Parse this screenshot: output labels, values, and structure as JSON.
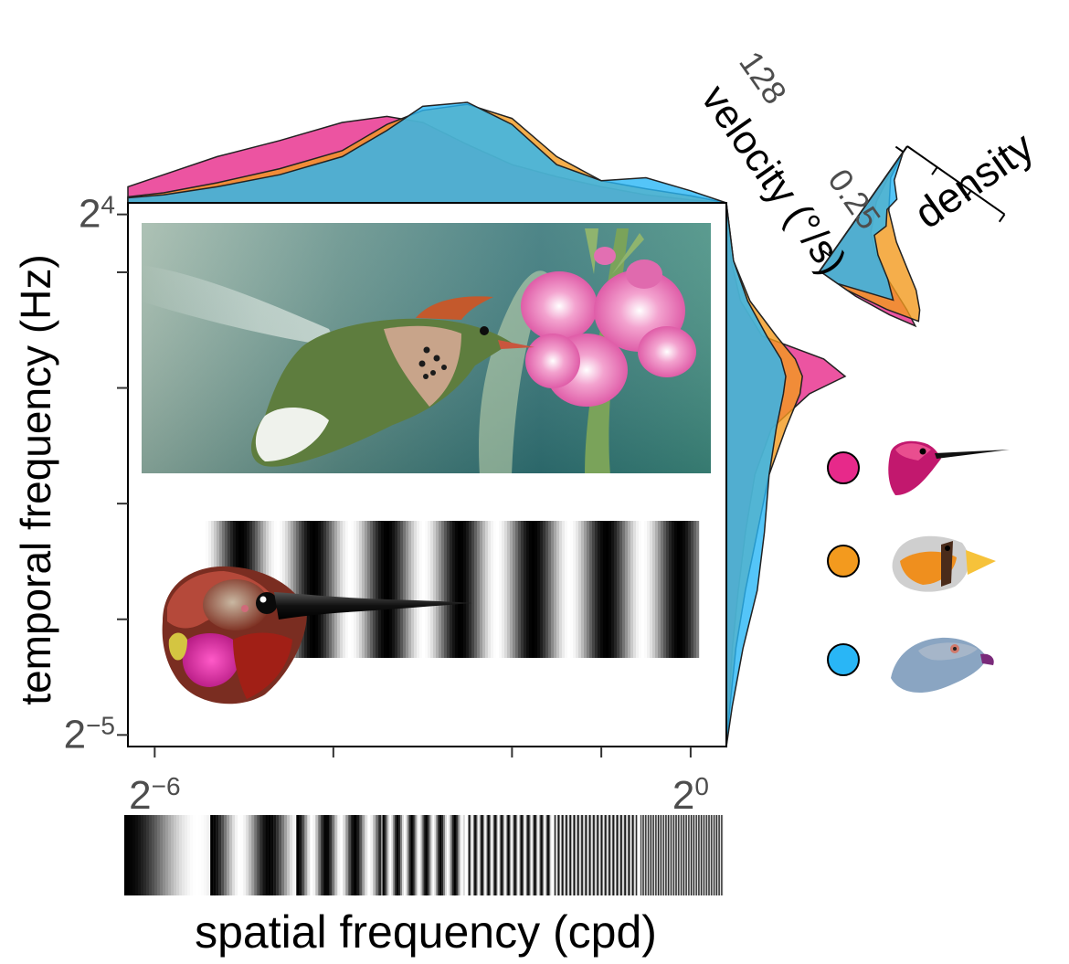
{
  "chart_data": {
    "type": "area",
    "description_tag": "joint spatial/temporal frequency panel with marginal density plots",
    "x_axis": {
      "label": "spatial frequency (cpd)",
      "scale": "log2",
      "range_log2": [
        -6.3,
        0.4
      ],
      "tick_labels": [
        {
          "base": "2",
          "exp": "−6",
          "log2": -6
        },
        {
          "base": "2",
          "exp": "0",
          "log2": 0
        }
      ],
      "minor_ticks_log2": [
        -4,
        -2,
        -1
      ]
    },
    "y_axis": {
      "label": "temporal frequency (Hz)",
      "scale": "log2",
      "range_log2": [
        -5.2,
        4.2
      ],
      "tick_labels": [
        {
          "base": "2",
          "exp": "4",
          "log2": 4
        },
        {
          "base": "2",
          "exp": "−5",
          "log2": -5
        }
      ],
      "minor_ticks_log2": [
        3,
        1,
        -1,
        -3
      ]
    },
    "inset": {
      "x_label": "density",
      "y_label": "velocity (°/s)",
      "y_ticks": [
        "128",
        "0.25"
      ]
    },
    "series": [
      {
        "color": "#E7298A",
        "x_density": [
          [
            -6.3,
            0.16
          ],
          [
            -5.9,
            0.28
          ],
          [
            -5.3,
            0.46
          ],
          [
            -4.6,
            0.62
          ],
          [
            -3.9,
            0.8
          ],
          [
            -3.4,
            0.86
          ],
          [
            -3.0,
            0.8
          ],
          [
            -2.5,
            0.58
          ],
          [
            -2.0,
            0.38
          ],
          [
            -1.5,
            0.26
          ],
          [
            -1.0,
            0.16
          ],
          [
            -0.5,
            0.08
          ],
          [
            0.0,
            0.03
          ],
          [
            0.4,
            0.0
          ]
        ],
        "y_density": [
          [
            -5.2,
            0.0
          ],
          [
            -4.5,
            0.02
          ],
          [
            -3.5,
            0.05
          ],
          [
            -2.5,
            0.1
          ],
          [
            -1.5,
            0.16
          ],
          [
            -0.5,
            0.24
          ],
          [
            0.3,
            0.38
          ],
          [
            0.9,
            0.7
          ],
          [
            1.2,
            1.0
          ],
          [
            1.5,
            0.82
          ],
          [
            1.9,
            0.3
          ],
          [
            2.5,
            0.12
          ],
          [
            3.2,
            0.04
          ],
          [
            4.2,
            0.0
          ]
        ],
        "velocity_density": [
          [
            -2.0,
            0.0
          ],
          [
            0.0,
            0.02
          ],
          [
            2.0,
            0.06
          ],
          [
            4.0,
            0.18
          ],
          [
            5.0,
            0.32
          ],
          [
            6.0,
            0.55
          ],
          [
            7.0,
            0.85
          ],
          [
            7.6,
            1.0
          ],
          [
            8.0,
            0.75
          ],
          [
            8.3,
            0.4
          ]
        ]
      },
      {
        "color": "#F39A1E",
        "x_density": [
          [
            -6.3,
            0.06
          ],
          [
            -5.9,
            0.1
          ],
          [
            -5.3,
            0.2
          ],
          [
            -4.6,
            0.34
          ],
          [
            -3.9,
            0.52
          ],
          [
            -3.4,
            0.78
          ],
          [
            -3.0,
            0.92
          ],
          [
            -2.5,
            0.98
          ],
          [
            -2.0,
            0.84
          ],
          [
            -1.5,
            0.46
          ],
          [
            -1.0,
            0.22
          ],
          [
            -0.5,
            0.14
          ],
          [
            0.0,
            0.07
          ],
          [
            0.4,
            0.0
          ]
        ],
        "y_density": [
          [
            -5.2,
            0.0
          ],
          [
            -4.5,
            0.03
          ],
          [
            -3.5,
            0.08
          ],
          [
            -2.5,
            0.16
          ],
          [
            -1.5,
            0.26
          ],
          [
            -0.5,
            0.36
          ],
          [
            0.3,
            0.5
          ],
          [
            0.9,
            0.62
          ],
          [
            1.2,
            0.64
          ],
          [
            1.5,
            0.58
          ],
          [
            1.9,
            0.42
          ],
          [
            2.5,
            0.2
          ],
          [
            3.2,
            0.06
          ],
          [
            4.2,
            0.0
          ]
        ],
        "velocity_density": [
          [
            -2.0,
            0.0
          ],
          [
            0.0,
            0.04
          ],
          [
            2.0,
            0.2
          ],
          [
            3.5,
            0.42
          ],
          [
            4.5,
            0.62
          ],
          [
            5.5,
            0.82
          ],
          [
            6.5,
            0.95
          ],
          [
            7.2,
            1.0
          ],
          [
            7.8,
            0.7
          ],
          [
            8.3,
            0.3
          ]
        ]
      },
      {
        "color": "#29B6F6",
        "x_density": [
          [
            -6.3,
            0.05
          ],
          [
            -5.9,
            0.08
          ],
          [
            -5.3,
            0.16
          ],
          [
            -4.6,
            0.28
          ],
          [
            -3.9,
            0.46
          ],
          [
            -3.4,
            0.72
          ],
          [
            -3.0,
            0.96
          ],
          [
            -2.5,
            1.0
          ],
          [
            -2.0,
            0.78
          ],
          [
            -1.5,
            0.38
          ],
          [
            -1.0,
            0.22
          ],
          [
            -0.5,
            0.25
          ],
          [
            0.0,
            0.12
          ],
          [
            0.4,
            0.0
          ]
        ],
        "y_density": [
          [
            -5.2,
            0.0
          ],
          [
            -4.5,
            0.05
          ],
          [
            -3.5,
            0.14
          ],
          [
            -2.5,
            0.26
          ],
          [
            -1.5,
            0.32
          ],
          [
            -0.5,
            0.36
          ],
          [
            0.3,
            0.42
          ],
          [
            0.9,
            0.48
          ],
          [
            1.2,
            0.5
          ],
          [
            1.5,
            0.46
          ],
          [
            1.9,
            0.34
          ],
          [
            2.5,
            0.18
          ],
          [
            3.2,
            0.06
          ],
          [
            4.2,
            0.0
          ]
        ],
        "velocity_density": [
          [
            -2.0,
            0.0
          ],
          [
            0.0,
            0.08
          ],
          [
            1.0,
            0.2
          ],
          [
            2.0,
            0.18
          ],
          [
            3.0,
            0.26
          ],
          [
            4.0,
            0.22
          ],
          [
            5.0,
            0.35
          ],
          [
            6.0,
            0.55
          ],
          [
            7.0,
            0.7
          ],
          [
            8.3,
            0.2
          ]
        ]
      }
    ],
    "legend": {
      "placement": "right",
      "entries": [
        {
          "color": "#E7298A",
          "icon": "hummingbird-head-icon"
        },
        {
          "color": "#F39A1E",
          "icon": "finch-head-icon"
        },
        {
          "color": "#29B6F6",
          "icon": "pigeon-head-icon"
        }
      ]
    },
    "grating_strip": {
      "cycles_per_segment": [
        0.6,
        1.5,
        3,
        6,
        13,
        22,
        34
      ]
    },
    "illustrations": [
      "hummingbird-photo",
      "hummingbird-head-illustration",
      "sinusoidal-grating"
    ]
  }
}
